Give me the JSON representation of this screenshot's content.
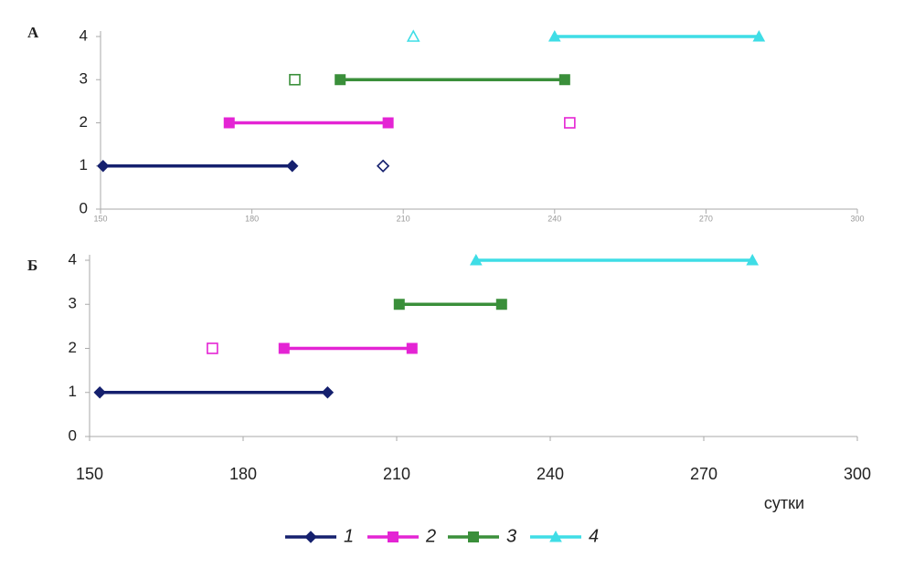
{
  "chart_data": [
    {
      "type": "line",
      "title": "А",
      "xlim": [
        150,
        300
      ],
      "xticks": [
        150,
        180,
        210,
        240,
        270,
        300
      ],
      "ylim": [
        0,
        4
      ],
      "yticks": [
        0,
        1,
        2,
        3,
        4
      ],
      "series": [
        {
          "color": "#15206e",
          "marker": "diamond",
          "x": [
            150.5,
            188
          ],
          "values": [
            1,
            1
          ],
          "open_x": 206,
          "open_value": 1
        },
        {
          "color": "#e424d4",
          "marker": "square",
          "x": [
            175.5,
            207
          ],
          "values": [
            2,
            2
          ],
          "open_x": 243,
          "open_value": 2
        },
        {
          "color": "#3a8f3a",
          "marker": "square",
          "x": [
            197.5,
            242
          ],
          "values": [
            3,
            3
          ],
          "open_x": 188.5,
          "open_value": 3
        },
        {
          "color": "#3fdde6",
          "marker": "triangle",
          "x": [
            240,
            280.5
          ],
          "values": [
            4,
            4
          ],
          "open_x": 212,
          "open_value": 4
        }
      ]
    },
    {
      "type": "line",
      "title": "Б",
      "x_label": "сутки",
      "xlim": [
        150,
        300
      ],
      "xticks": [
        150,
        180,
        210,
        240,
        270,
        300
      ],
      "ylim": [
        0,
        4
      ],
      "yticks": [
        0,
        1,
        2,
        3,
        4
      ],
      "series": [
        {
          "name": "1",
          "color": "#15206e",
          "marker": "diamond",
          "x": [
            152,
            196.5
          ],
          "values": [
            1,
            1
          ]
        },
        {
          "name": "2",
          "color": "#e424d4",
          "marker": "square",
          "x": [
            188,
            213
          ],
          "values": [
            2,
            2
          ],
          "open_x": 174,
          "open_value": 2
        },
        {
          "name": "3",
          "color": "#3a8f3a",
          "marker": "square",
          "x": [
            210.5,
            230.5
          ],
          "values": [
            3,
            3
          ]
        },
        {
          "name": "4",
          "color": "#3fdde6",
          "marker": "triangle",
          "x": [
            225.5,
            279.5
          ],
          "values": [
            4,
            4
          ]
        }
      ]
    }
  ]
}
